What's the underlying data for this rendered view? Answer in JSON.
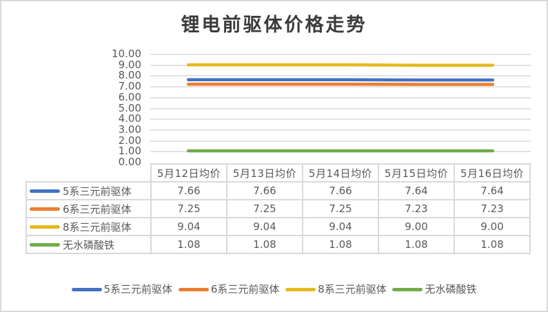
{
  "title": "锂电前驱体价格走势",
  "y_axis": {
    "ticks": [
      "10.00",
      "9.00",
      "8.00",
      "7.00",
      "6.00",
      "5.00",
      "4.00",
      "3.00",
      "2.00",
      "1.00",
      "0.00"
    ]
  },
  "table": {
    "columns": [
      "5月12日均价",
      "5月13日均价",
      "5月14日均价",
      "5月15日均价",
      "5月16日均价"
    ],
    "rows": [
      {
        "label": "5系三元前驱体",
        "color": "#4472C4",
        "values": [
          "7.66",
          "7.66",
          "7.66",
          "7.64",
          "7.64"
        ]
      },
      {
        "label": "6系三元前驱体",
        "color": "#ED7D31",
        "values": [
          "7.25",
          "7.25",
          "7.25",
          "7.23",
          "7.23"
        ]
      },
      {
        "label": "8系三元前驱体",
        "color": "#E6B91E",
        "values": [
          "9.04",
          "9.04",
          "9.04",
          "9.00",
          "9.00"
        ]
      },
      {
        "label": "无水磷酸铁",
        "color": "#70AD47",
        "values": [
          "1.08",
          "1.08",
          "1.08",
          "1.08",
          "1.08"
        ]
      }
    ]
  },
  "legend": [
    {
      "label": "5系三元前驱体",
      "color": "#4472C4"
    },
    {
      "label": "6系三元前驱体",
      "color": "#ED7D31"
    },
    {
      "label": "8系三元前驱体",
      "color": "#E6B91E"
    },
    {
      "label": "无水磷酸铁",
      "color": "#70AD47"
    }
  ],
  "chart_data": {
    "type": "line",
    "title": "锂电前驱体价格走势",
    "xlabel": "",
    "ylabel": "",
    "categories": [
      "5月12日均价",
      "5月13日均价",
      "5月14日均价",
      "5月15日均价",
      "5月16日均价"
    ],
    "series": [
      {
        "name": "5系三元前驱体",
        "color": "#4472C4",
        "values": [
          7.66,
          7.66,
          7.66,
          7.64,
          7.64
        ]
      },
      {
        "name": "6系三元前驱体",
        "color": "#ED7D31",
        "values": [
          7.25,
          7.25,
          7.25,
          7.23,
          7.23
        ]
      },
      {
        "name": "8系三元前驱体",
        "color": "#E6B91E",
        "values": [
          9.04,
          9.04,
          9.04,
          9.0,
          9.0
        ]
      },
      {
        "name": "无水磷酸铁",
        "color": "#70AD47",
        "values": [
          1.08,
          1.08,
          1.08,
          1.08,
          1.08
        ]
      }
    ],
    "ylim": [
      0,
      10
    ],
    "ytick_step": 1,
    "grid": true,
    "legend_position": "bottom",
    "data_table": true
  }
}
